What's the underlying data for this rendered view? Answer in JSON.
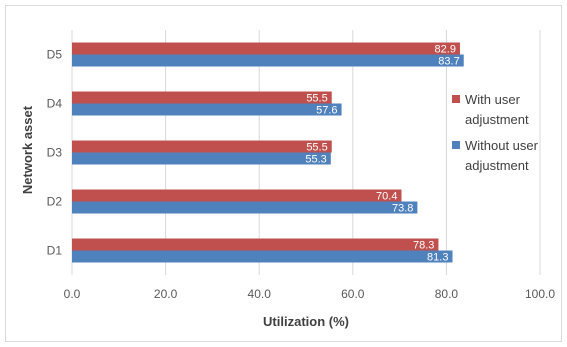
{
  "chart_data": {
    "type": "bar",
    "orientation": "horizontal",
    "categories": [
      "D1",
      "D2",
      "D3",
      "D4",
      "D5"
    ],
    "series": [
      {
        "name": "With user adjustment",
        "values": [
          78.3,
          70.4,
          55.5,
          55.5,
          82.9
        ],
        "labels": [
          "78.3",
          "70.4",
          "55.5",
          "55.5",
          "82.9"
        ],
        "color": "#c0504d"
      },
      {
        "name": "Without user adjustment",
        "values": [
          81.3,
          73.8,
          55.3,
          57.6,
          83.7
        ],
        "labels": [
          "81.3",
          "73.8",
          "55.3",
          "57.6",
          "83.7"
        ],
        "color": "#4f81bd"
      }
    ],
    "legend_lines": [
      [
        "With user",
        "adjustment"
      ],
      [
        "Without user",
        "adjustment"
      ]
    ],
    "xlabel": "Utilization (%)",
    "ylabel": "Network asset",
    "xlim": [
      0,
      100
    ],
    "xticks": [
      "0.0",
      "20.0",
      "40.0",
      "60.0",
      "80.0",
      "100.0"
    ],
    "xtick_values": [
      0,
      20,
      40,
      60,
      80,
      100
    ],
    "grid": true,
    "gridline_color": "#d9d9d9",
    "legend_position": "right"
  }
}
